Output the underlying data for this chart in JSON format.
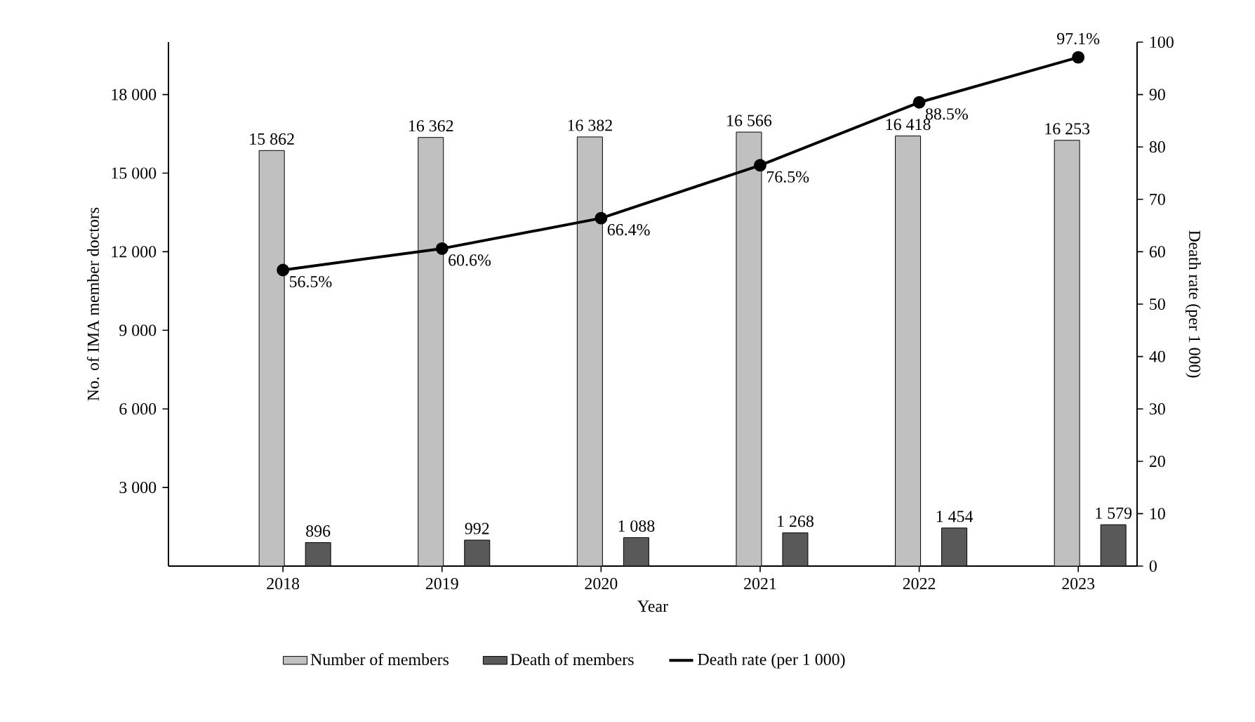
{
  "chart_data": {
    "type": "bar",
    "categories": [
      "2018",
      "2019",
      "2020",
      "2021",
      "2022",
      "2023"
    ],
    "xlabel": "Year",
    "ylabel": "No. of IMA member doctors",
    "y2label": "Death rate (per 1 000)",
    "series": [
      {
        "name": "Number of members",
        "color": "#c0c0c0",
        "values": [
          15862,
          16362,
          16382,
          16566,
          16418,
          16253
        ],
        "value_labels": [
          "15 862",
          "16 362",
          "16 382",
          "16 566",
          "16 418",
          "16 253"
        ]
      },
      {
        "name": "Death of members",
        "color": "#595959",
        "values": [
          896,
          992,
          1088,
          1268,
          1454,
          1579
        ],
        "value_labels": [
          "896",
          "992",
          "1 088",
          "1 268",
          "1 454",
          "1 579"
        ]
      },
      {
        "name": "Death rate (per 1 000)",
        "type": "line",
        "axis": "y2",
        "color": "#000000",
        "values": [
          56.5,
          60.6,
          66.4,
          76.5,
          88.5,
          97.1
        ],
        "value_labels": [
          "56.5%",
          "60.6%",
          "66.4%",
          "76.5%",
          "88.5%",
          "97.1%"
        ]
      }
    ],
    "ylim": [
      0,
      20000
    ],
    "yticks": [
      {
        "value": 3000,
        "label": "3 000"
      },
      {
        "value": 6000,
        "label": "6 000"
      },
      {
        "value": 9000,
        "label": "9 000"
      },
      {
        "value": 12000,
        "label": "12 000"
      },
      {
        "value": 15000,
        "label": "15 000"
      },
      {
        "value": 18000,
        "label": "18 000"
      }
    ],
    "y2lim": [
      0,
      100
    ],
    "y2ticks": [
      0,
      10,
      20,
      30,
      40,
      50,
      60,
      70,
      80,
      90,
      100
    ],
    "grid": false,
    "legend": "bottom",
    "marker": "circle",
    "line_style": "solid"
  }
}
